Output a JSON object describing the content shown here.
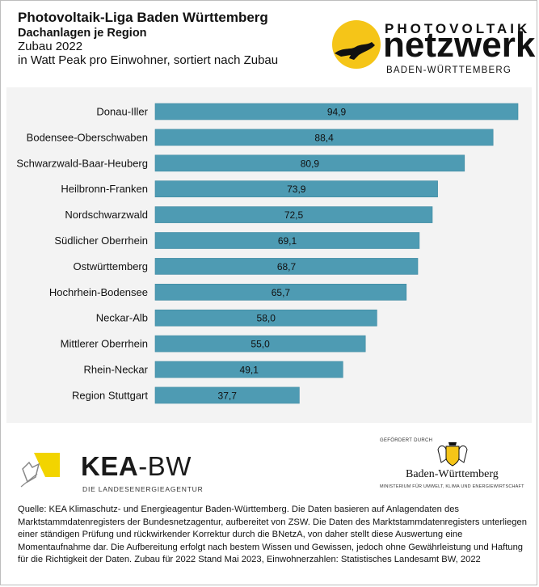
{
  "header": {
    "title": "Photovoltaik-Liga Baden Württemberg",
    "subtitle": "Dachanlagen je Region",
    "period": "Zubau 2022",
    "unit_note": "in Watt Peak pro Einwohner, sortiert nach Zubau"
  },
  "logos": {
    "pv_top": "PHOTOVOLTAIK",
    "pv_main": "netzwerk",
    "pv_region": "BADEN-WÜRTTEMBERG",
    "kea_name_bold": "KEA",
    "kea_name_light": "-BW",
    "kea_sub": "DIE LANDESENERGIEAGENTUR",
    "bw_supported": "GEFÖRDERT DURCH",
    "bw_name": "Baden-Württemberg",
    "bw_ministry": "MINISTERIUM FÜR UMWELT, KLIMA UND ENERGIEWIRTSCHAFT"
  },
  "colors": {
    "bar": "#4e9bb3",
    "bar_edge": "#3f8aa2",
    "sun": "#f5c518",
    "kea_yellow": "#f2d400"
  },
  "chart_data": {
    "type": "bar",
    "orientation": "horizontal",
    "categories": [
      "Donau-Iller",
      "Bodensee-Oberschwaben",
      "Schwarzwald-Baar-Heuberg",
      "Heilbronn-Franken",
      "Nordschwarzwald",
      "Südlicher Oberrhein",
      "Ostwürttemberg",
      "Hochrhein-Bodensee",
      "Neckar-Alb",
      "Mittlerer Oberrhein",
      "Rhein-Neckar",
      "Region Stuttgart"
    ],
    "values": [
      94.9,
      88.4,
      80.9,
      73.9,
      72.5,
      69.1,
      68.7,
      65.7,
      58.0,
      55.0,
      49.1,
      37.7
    ],
    "value_labels": [
      "94,9",
      "88,4",
      "80,9",
      "73,9",
      "72,5",
      "69,1",
      "68,7",
      "65,7",
      "58,0",
      "55,0",
      "49,1",
      "37,7"
    ],
    "xlim": [
      0,
      100
    ],
    "grid": false,
    "legend": "none"
  },
  "source": "Quelle: KEA Klimaschutz- und Energieagentur Baden-Württemberg. Die Daten basieren auf Anlagendaten des Marktstammdatenregisters der Bundesnetzagentur, aufbereitet von ZSW. Die Daten des Marktstammdatenregisters unterliegen einer ständigen Prüfung und rückwirkender Korrektur durch die BNetzA, von daher stellt diese Auswertung eine Momentaufnahme dar. Die Aufbereitung erfolgt nach bestem Wissen und Gewissen, jedoch ohne Gewährleistung und Haftung für die Richtigkeit der Daten. Zubau für 2022 Stand Mai 2023, Einwohnerzahlen: Statistisches Landesamt BW, 2022"
}
